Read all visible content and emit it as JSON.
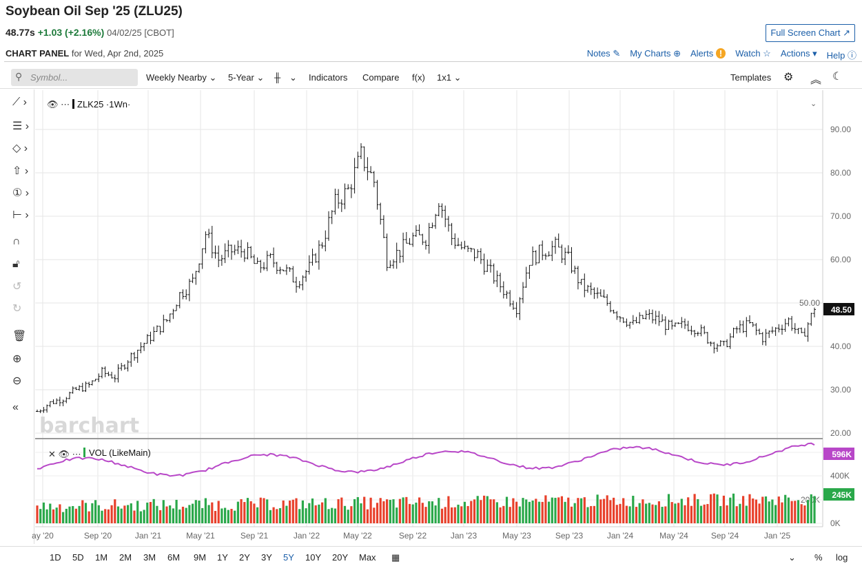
{
  "header": {
    "title": "Soybean Oil Sep '25 (ZLU25)",
    "last": "48.77s",
    "change": "+1.03 (+2.16%)",
    "date_exchange": "04/02/25 [CBOT]",
    "full_screen": "Full Screen Chart ↗",
    "panel_label": "CHART PANEL",
    "panel_date": "for Wed, Apr 2nd, 2025"
  },
  "links": [
    "Notes",
    "My Charts",
    "Alerts",
    "Watch",
    "Actions ▾",
    "Help"
  ],
  "toolbar": {
    "symbol_placeholder": "Symbol...",
    "interval": "Weekly Nearby ⌄",
    "period": "5-Year ⌄",
    "bar_type": "⌄",
    "indicators": "Indicators",
    "compare": "Compare",
    "fx": "f(x)",
    "layout": "1x1 ⌄",
    "templates": "Templates"
  },
  "chart": {
    "symbol_label": "ZLK25 ·1Wn·",
    "volume_label": "VOL (LikeMain)",
    "watermark": "barchart",
    "last_price_label": "48.50",
    "vol_avg_label": "596K",
    "vol_label": "245K",
    "up_color": "#2aa84a",
    "down_color": "#e8402b",
    "avg_color": "#b847c8"
  },
  "chart_data": {
    "type": "ohlc",
    "title": "ZLK25",
    "y_ticks": [
      "90.00",
      "80.00",
      "70.00",
      "60.00",
      "50.00",
      "40.00",
      "30.00",
      "20.00"
    ],
    "vol_ticks": [
      "600K",
      "400K",
      "200K",
      "0K"
    ],
    "x_ticks": [
      "ay '20",
      "Sep '20",
      "Jan '21",
      "May '21",
      "Sep '21",
      "Jan '22",
      "May '22",
      "Sep '22",
      "Jan '23",
      "May '23",
      "Sep '23",
      "Jan '24",
      "May '24",
      "Sep '24",
      "Jan '25"
    ],
    "monthly_close_approx": [
      25,
      27,
      28,
      30,
      31,
      34,
      33,
      37,
      40,
      43,
      46,
      52,
      55,
      66,
      60,
      62,
      62,
      58,
      60,
      58,
      55,
      58,
      64,
      73,
      76,
      84,
      78,
      60,
      62,
      65,
      65,
      74,
      65,
      62,
      61,
      57,
      53,
      49,
      60,
      62,
      63,
      60,
      54,
      52,
      50,
      47,
      45,
      47,
      46,
      44,
      45,
      44,
      41,
      40,
      44,
      45,
      42,
      44,
      46,
      42,
      48.5
    ],
    "last": 48.5
  },
  "ranges": [
    "1D",
    "5D",
    "1M",
    "2M",
    "3M",
    "6M",
    "9M",
    "1Y",
    "2Y",
    "3Y",
    "5Y",
    "10Y",
    "20Y",
    "Max"
  ],
  "bottom_right": [
    "%",
    "log"
  ]
}
